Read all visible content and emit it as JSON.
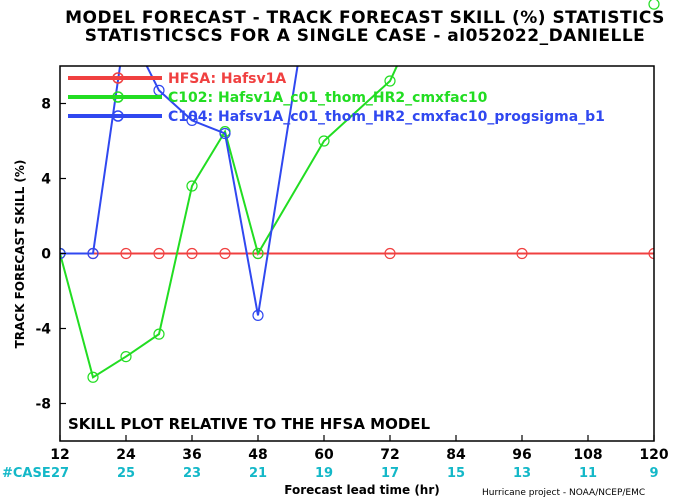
{
  "chart_data": {
    "type": "line",
    "title": "MODEL FORECAST - TRACK FORECAST SKILL (%) STATISTICS",
    "subtitle": "STATISTICSCS FOR A SINGLE CASE - al052022_DANIELLE",
    "xlabel": "Forecast lead time (hr)",
    "ylabel": "TRACK FORECAST SKILL (%)",
    "xlim": [
      12,
      120
    ],
    "ylim": [
      -10,
      10
    ],
    "xticks": [
      12,
      24,
      36,
      48,
      60,
      72,
      84,
      96,
      108,
      120
    ],
    "yticks": [
      -8,
      -4,
      0,
      4,
      8
    ],
    "case_label": "#CASE",
    "case_counts": [
      "27",
      "25",
      "23",
      "21",
      "19",
      "17",
      "15",
      "13",
      "11",
      "9"
    ],
    "annotation": "SKILL PLOT RELATIVE TO THE HFSA MODEL",
    "credit": "Hurricane project - NOAA/NCEP/EMC",
    "grid": false,
    "legend_position": "top-left",
    "series": [
      {
        "name": "HFSA: Hafsv1A",
        "color": "#f04040",
        "x": [
          12,
          18,
          24,
          30,
          36,
          42,
          48,
          72,
          96,
          120
        ],
        "y": [
          0,
          0,
          0,
          0,
          0,
          0,
          0,
          0,
          0,
          0
        ]
      },
      {
        "name": "C102: Hafsv1A_c01_thom_HR2_cmxfac10",
        "color": "#22dd22",
        "x": [
          12,
          18,
          24,
          30,
          36,
          42,
          48,
          60,
          72,
          78
        ],
        "y": [
          0,
          -6.6,
          -5.5,
          -4.3,
          3.6,
          6.5,
          0,
          6,
          9.2,
          13
        ]
      },
      {
        "name": "C104: Hafsv1A_c01_thom_HR2_cmxfac10_progsigma_b1",
        "color": "#3048f0",
        "x": [
          12,
          18,
          24,
          30,
          36,
          42,
          48,
          56
        ],
        "y": [
          0,
          0,
          12.2,
          8.7,
          7.1,
          6.4,
          -3.3,
          11.5
        ]
      }
    ],
    "outlier_marker": {
      "series": "C102: Hafsv1A_c01_thom_HR2_cmxfac10",
      "x": 120,
      "y": 13.3
    }
  }
}
